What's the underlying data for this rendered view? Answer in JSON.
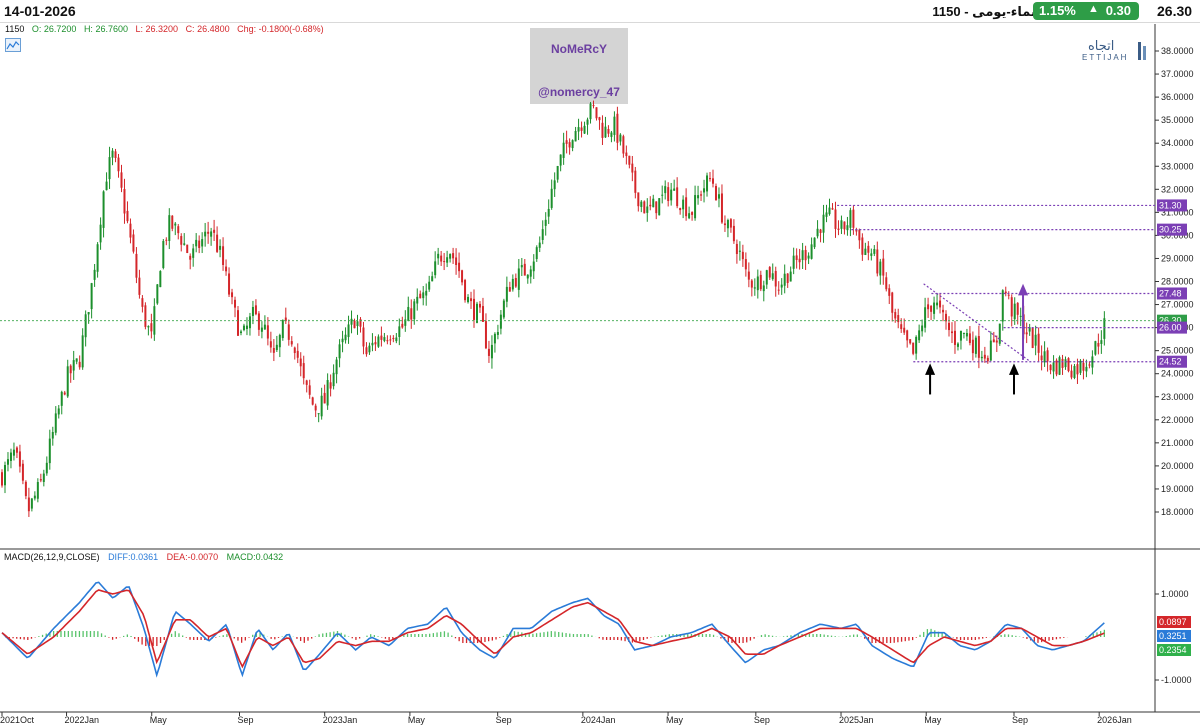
{
  "header": {
    "date": "14-01-2026",
    "symbol_title": "الإنماء-يومى - 1150",
    "change_pct": "1.15%",
    "change_arrow": "▲",
    "change_abs": "0.30",
    "last_price": "26.30"
  },
  "ohlc": {
    "symbol": "1150",
    "open": "O: 26.7200",
    "high": "H: 26.7600",
    "low": "L: 26.3200",
    "close": "C: 26.4800",
    "chg": "Chg: -0.1800(-0.68%)"
  },
  "watermark": {
    "name": "NoMeRcY",
    "handle": "@nomercy_47"
  },
  "logo": {
    "arabic": "اتجاه",
    "latin": "ETTIJAH"
  },
  "macd_header": {
    "title": "MACD(26,12,9,CLOSE)",
    "diff": "DIFF:0.0361",
    "dea": "DEA:-0.0070",
    "macd": "MACD:0.0432"
  },
  "colors": {
    "up": "#1c8f2c",
    "down": "#d4262a",
    "purple": "#7b3fb5",
    "diff": "#2a7bd8",
    "dea": "#d4262a",
    "badge": "#2e9d47"
  },
  "chart_data": [
    {
      "type": "candlestick",
      "title": "",
      "ylim": [
        17.0,
        38.6
      ],
      "y_ticks": [
        "38.0000",
        "37.0000",
        "36.0000",
        "35.0000",
        "34.0000",
        "33.0000",
        "32.0000",
        "31.0000",
        "30.0000",
        "29.0000",
        "28.0000",
        "27.0000",
        "26.0000",
        "25.0000",
        "24.0000",
        "23.0000",
        "22.0000",
        "21.0000",
        "20.0000",
        "19.0000",
        "18.0000"
      ],
      "x_labels": [
        "2021Oct",
        "2022Jan",
        "May",
        "Sep",
        "2023Jan",
        "May",
        "Sep",
        "2024Jan",
        "May",
        "Sep",
        "2025Jan",
        "May",
        "Sep",
        "2026Jan"
      ],
      "x_label_dates": [
        2021.75,
        2022.0,
        2022.33,
        2022.67,
        2023.0,
        2023.33,
        2023.67,
        2024.0,
        2024.33,
        2024.67,
        2025.0,
        2025.33,
        2025.67,
        2026.0
      ],
      "price_path": [
        [
          2021.75,
          19.6
        ],
        [
          2021.8,
          20.6
        ],
        [
          2021.85,
          18.0
        ],
        [
          2021.9,
          19.2
        ],
        [
          2021.95,
          21.5
        ],
        [
          2022.0,
          23.8
        ],
        [
          2022.05,
          24.6
        ],
        [
          2022.1,
          28.0
        ],
        [
          2022.15,
          32.5
        ],
        [
          2022.18,
          33.5
        ],
        [
          2022.22,
          31.5
        ],
        [
          2022.26,
          29.0
        ],
        [
          2022.29,
          26.8
        ],
        [
          2022.33,
          25.5
        ],
        [
          2022.37,
          29.5
        ],
        [
          2022.4,
          30.5
        ],
        [
          2022.44,
          30.0
        ],
        [
          2022.48,
          29.0
        ],
        [
          2022.52,
          29.7
        ],
        [
          2022.56,
          30.3
        ],
        [
          2022.6,
          29.0
        ],
        [
          2022.64,
          27.0
        ],
        [
          2022.68,
          25.5
        ],
        [
          2022.72,
          26.5
        ],
        [
          2022.76,
          26.2
        ],
        [
          2022.8,
          24.5
        ],
        [
          2022.84,
          26.0
        ],
        [
          2022.88,
          25.5
        ],
        [
          2022.92,
          23.5
        ],
        [
          2022.96,
          22.5
        ],
        [
          2023.0,
          22.8
        ],
        [
          2023.04,
          24.5
        ],
        [
          2023.08,
          25.5
        ],
        [
          2023.12,
          26.5
        ],
        [
          2023.16,
          24.8
        ],
        [
          2023.2,
          25.5
        ],
        [
          2023.25,
          25.8
        ],
        [
          2023.3,
          26.0
        ],
        [
          2023.35,
          27.0
        ],
        [
          2023.4,
          27.5
        ],
        [
          2023.44,
          29.0
        ],
        [
          2023.48,
          29.5
        ],
        [
          2023.52,
          28.5
        ],
        [
          2023.56,
          27.0
        ],
        [
          2023.6,
          26.5
        ],
        [
          2023.64,
          24.8
        ],
        [
          2023.68,
          26.5
        ],
        [
          2023.72,
          28.0
        ],
        [
          2023.78,
          28.5
        ],
        [
          2023.83,
          29.5
        ],
        [
          2023.88,
          32.0
        ],
        [
          2023.92,
          33.5
        ],
        [
          2023.96,
          34.5
        ],
        [
          2024.0,
          35.0
        ],
        [
          2024.04,
          35.5
        ],
        [
          2024.08,
          34.5
        ],
        [
          2024.12,
          34.8
        ],
        [
          2024.16,
          33.5
        ],
        [
          2024.2,
          32.0
        ],
        [
          2024.25,
          31.0
        ],
        [
          2024.3,
          31.5
        ],
        [
          2024.34,
          32.0
        ],
        [
          2024.38,
          31.5
        ],
        [
          2024.42,
          31.0
        ],
        [
          2024.46,
          32.0
        ],
        [
          2024.5,
          32.5
        ],
        [
          2024.55,
          30.5
        ],
        [
          2024.6,
          29.5
        ],
        [
          2024.64,
          28.0
        ],
        [
          2024.68,
          28.0
        ],
        [
          2024.72,
          28.5
        ],
        [
          2024.76,
          27.8
        ],
        [
          2024.8,
          28.5
        ],
        [
          2024.84,
          29.0
        ],
        [
          2024.88,
          29.5
        ],
        [
          2024.92,
          30.5
        ],
        [
          2024.96,
          30.8
        ],
        [
          2025.0,
          30.2
        ],
        [
          2025.04,
          30.8
        ],
        [
          2025.08,
          29.5
        ],
        [
          2025.12,
          29.2
        ],
        [
          2025.17,
          28.0
        ],
        [
          2025.2,
          26.5
        ],
        [
          2025.24,
          25.5
        ],
        [
          2025.28,
          24.8
        ],
        [
          2025.32,
          26.5
        ],
        [
          2025.36,
          27.2
        ],
        [
          2025.4,
          26.2
        ],
        [
          2025.44,
          25.5
        ],
        [
          2025.48,
          25.8
        ],
        [
          2025.52,
          25.2
        ],
        [
          2025.56,
          24.9
        ],
        [
          2025.6,
          25.2
        ],
        [
          2025.63,
          27.8
        ],
        [
          2025.66,
          26.8
        ],
        [
          2025.7,
          26.2
        ],
        [
          2025.74,
          25.5
        ],
        [
          2025.78,
          24.8
        ],
        [
          2025.82,
          24.3
        ],
        [
          2025.86,
          24.5
        ],
        [
          2025.9,
          24.2
        ],
        [
          2025.94,
          24.4
        ],
        [
          2025.98,
          25.0
        ],
        [
          2026.02,
          26.1
        ]
      ],
      "levels": [
        {
          "label": "31.30",
          "value": 31.3
        },
        {
          "label": "30.25",
          "value": 30.25
        },
        {
          "label": "27.48",
          "value": 27.48
        },
        {
          "label": "26.00",
          "value": 26.0
        },
        {
          "label": "24.52",
          "value": 24.52
        }
      ],
      "last_price_label": "26.30",
      "last_price_value": 26.3
    },
    {
      "type": "line",
      "title": "MACD(26,12,9,CLOSE)",
      "ylim": [
        -1.3,
        1.3
      ],
      "y_ticks": [
        "1.0000",
        "-1.0000"
      ],
      "series": [
        {
          "name": "DIFF",
          "values_path": [
            [
              2021.75,
              0.1
            ],
            [
              2021.85,
              -0.5
            ],
            [
              2021.95,
              0.2
            ],
            [
              2022.05,
              0.8
            ],
            [
              2022.12,
              1.3
            ],
            [
              2022.18,
              0.9
            ],
            [
              2022.24,
              1.2
            ],
            [
              2022.3,
              0.2
            ],
            [
              2022.35,
              -0.9
            ],
            [
              2022.42,
              0.6
            ],
            [
              2022.48,
              0.3
            ],
            [
              2022.55,
              -0.1
            ],
            [
              2022.62,
              0.3
            ],
            [
              2022.68,
              -0.9
            ],
            [
              2022.74,
              0.2
            ],
            [
              2022.8,
              -0.3
            ],
            [
              2022.86,
              0.1
            ],
            [
              2022.92,
              -0.8
            ],
            [
              2022.98,
              -0.4
            ],
            [
              2023.05,
              0.1
            ],
            [
              2023.12,
              -0.3
            ],
            [
              2023.18,
              0.0
            ],
            [
              2023.25,
              -0.2
            ],
            [
              2023.32,
              0.2
            ],
            [
              2023.4,
              0.3
            ],
            [
              2023.47,
              0.7
            ],
            [
              2023.53,
              0.1
            ],
            [
              2023.6,
              -0.3
            ],
            [
              2023.66,
              -0.5
            ],
            [
              2023.73,
              0.2
            ],
            [
              2023.8,
              0.2
            ],
            [
              2023.88,
              0.6
            ],
            [
              2023.96,
              0.8
            ],
            [
              2024.02,
              0.9
            ],
            [
              2024.08,
              0.5
            ],
            [
              2024.14,
              0.3
            ],
            [
              2024.2,
              -0.3
            ],
            [
              2024.27,
              -0.2
            ],
            [
              2024.34,
              0.0
            ],
            [
              2024.42,
              0.1
            ],
            [
              2024.5,
              0.3
            ],
            [
              2024.57,
              -0.2
            ],
            [
              2024.63,
              -0.6
            ],
            [
              2024.7,
              -0.3
            ],
            [
              2024.76,
              -0.2
            ],
            [
              2024.84,
              0.1
            ],
            [
              2024.92,
              0.3
            ],
            [
              2025.0,
              0.2
            ],
            [
              2025.06,
              0.3
            ],
            [
              2025.12,
              -0.2
            ],
            [
              2025.2,
              -0.5
            ],
            [
              2025.28,
              -0.7
            ],
            [
              2025.34,
              0.1
            ],
            [
              2025.4,
              0.1
            ],
            [
              2025.46,
              -0.2
            ],
            [
              2025.52,
              -0.3
            ],
            [
              2025.58,
              -0.1
            ],
            [
              2025.64,
              0.3
            ],
            [
              2025.7,
              0.2
            ],
            [
              2025.76,
              -0.2
            ],
            [
              2025.82,
              -0.3
            ],
            [
              2025.88,
              -0.2
            ],
            [
              2025.94,
              -0.1
            ],
            [
              2026.02,
              0.33
            ]
          ]
        },
        {
          "name": "DEA",
          "values_path": [
            [
              2021.75,
              0.1
            ],
            [
              2021.85,
              -0.4
            ],
            [
              2021.95,
              0.0
            ],
            [
              2022.05,
              0.6
            ],
            [
              2022.12,
              1.1
            ],
            [
              2022.18,
              1.0
            ],
            [
              2022.24,
              1.1
            ],
            [
              2022.3,
              0.5
            ],
            [
              2022.35,
              -0.6
            ],
            [
              2022.42,
              0.4
            ],
            [
              2022.48,
              0.4
            ],
            [
              2022.55,
              0.0
            ],
            [
              2022.62,
              0.2
            ],
            [
              2022.68,
              -0.7
            ],
            [
              2022.74,
              0.0
            ],
            [
              2022.8,
              -0.2
            ],
            [
              2022.86,
              0.0
            ],
            [
              2022.92,
              -0.6
            ],
            [
              2022.98,
              -0.5
            ],
            [
              2023.05,
              -0.1
            ],
            [
              2023.12,
              -0.2
            ],
            [
              2023.18,
              -0.1
            ],
            [
              2023.25,
              -0.1
            ],
            [
              2023.32,
              0.1
            ],
            [
              2023.4,
              0.2
            ],
            [
              2023.47,
              0.5
            ],
            [
              2023.53,
              0.3
            ],
            [
              2023.6,
              -0.1
            ],
            [
              2023.66,
              -0.4
            ],
            [
              2023.73,
              0.0
            ],
            [
              2023.8,
              0.1
            ],
            [
              2023.88,
              0.4
            ],
            [
              2023.96,
              0.7
            ],
            [
              2024.02,
              0.8
            ],
            [
              2024.08,
              0.6
            ],
            [
              2024.14,
              0.4
            ],
            [
              2024.2,
              -0.1
            ],
            [
              2024.27,
              -0.2
            ],
            [
              2024.34,
              -0.1
            ],
            [
              2024.42,
              0.0
            ],
            [
              2024.5,
              0.2
            ],
            [
              2024.57,
              0.0
            ],
            [
              2024.63,
              -0.4
            ],
            [
              2024.7,
              -0.4
            ],
            [
              2024.76,
              -0.2
            ],
            [
              2024.84,
              0.0
            ],
            [
              2024.92,
              0.2
            ],
            [
              2025.0,
              0.2
            ],
            [
              2025.06,
              0.2
            ],
            [
              2025.12,
              0.0
            ],
            [
              2025.2,
              -0.3
            ],
            [
              2025.28,
              -0.6
            ],
            [
              2025.34,
              -0.2
            ],
            [
              2025.4,
              0.0
            ],
            [
              2025.46,
              -0.1
            ],
            [
              2025.52,
              -0.2
            ],
            [
              2025.58,
              -0.1
            ],
            [
              2025.64,
              0.2
            ],
            [
              2025.7,
              0.2
            ],
            [
              2025.76,
              0.0
            ],
            [
              2025.82,
              -0.2
            ],
            [
              2025.88,
              -0.2
            ],
            [
              2025.94,
              -0.1
            ],
            [
              2026.02,
              0.09
            ]
          ]
        }
      ],
      "value_labels": [
        {
          "label": "0.0897",
          "value": 0.0897,
          "color": "#d4262a"
        },
        {
          "label": "0.3251",
          "value": 0.3251,
          "color": "#2a7bd8"
        },
        {
          "label": "0.2354",
          "value": 0.2354,
          "color": "#2fb04a"
        }
      ]
    }
  ]
}
